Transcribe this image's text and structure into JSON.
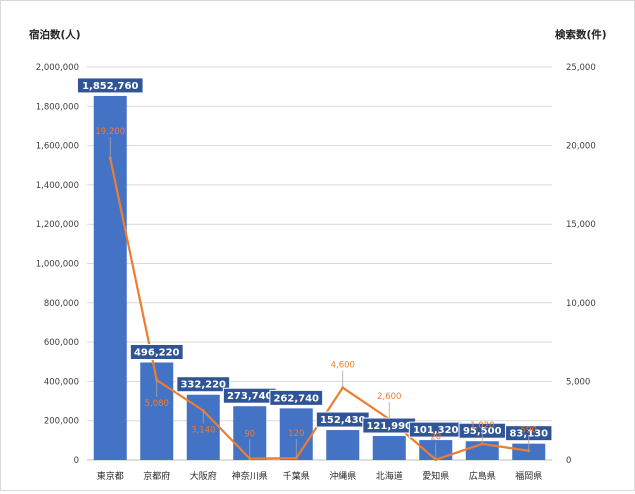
{
  "chart_data": {
    "type": "bar",
    "ylabel": "宿泊数(人)",
    "y2label": "検索数(件)",
    "categories": [
      "東京都",
      "京都府",
      "大阪府",
      "神奈川県",
      "千葉県",
      "沖縄県",
      "北海道",
      "愛知県",
      "広島県",
      "福岡県"
    ],
    "ylim": [
      0,
      2000000
    ],
    "y_ticks": [
      "0",
      "200,000",
      "400,000",
      "600,000",
      "800,000",
      "1,000,000",
      "1,200,000",
      "1,400,000",
      "1,600,000",
      "1,800,000",
      "2,000,000"
    ],
    "y2lim": [
      0,
      25000
    ],
    "y2_ticks": [
      "0",
      "5,000",
      "10,000",
      "15,000",
      "20,000",
      "25,000"
    ],
    "grid": true,
    "series": [
      {
        "type": "bar",
        "axis": "left",
        "color": "#4472c4",
        "values": [
          1852760,
          496220,
          332220,
          273740,
          262740,
          152430,
          121990,
          101320,
          95500,
          83130
        ],
        "labels": [
          "1,852,760",
          "496,220",
          "332,220",
          "273,740",
          "262,740",
          "152,430",
          "121,990",
          "101,320",
          "95,500",
          "83,130"
        ]
      },
      {
        "type": "line",
        "axis": "right",
        "color": "#ed7d31",
        "values": [
          19200,
          5080,
          3140,
          90,
          120,
          4600,
          2600,
          20,
          1020,
          590
        ],
        "labels": [
          "19,200",
          "5,080",
          "3,140",
          "90",
          "120",
          "4,600",
          "2,600",
          "20",
          "1,020",
          "590"
        ]
      }
    ]
  }
}
